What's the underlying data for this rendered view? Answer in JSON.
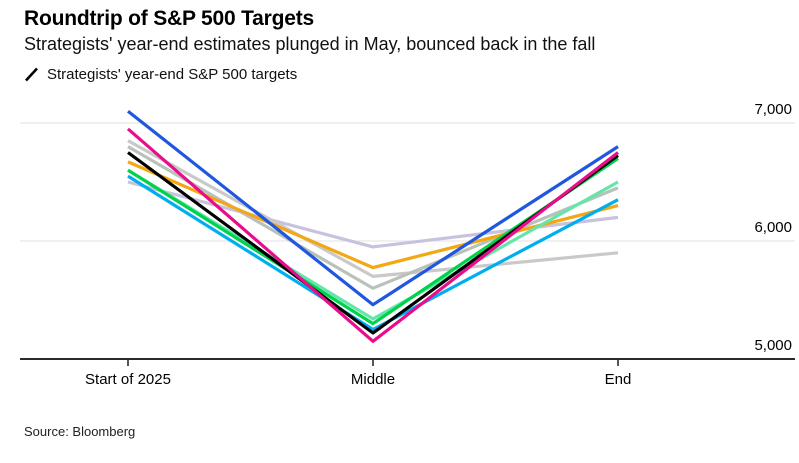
{
  "header": {
    "title": "Roundtrip of S&P 500 Targets",
    "subtitle": "Strategists' year-end estimates plunged in May, bounced back in the fall",
    "legend_label": "Strategists' year-end S&P 500 targets"
  },
  "footer": {
    "source": "Source: Bloomberg"
  },
  "chart_data": {
    "type": "line",
    "title": "Roundtrip of S&P 500 Targets",
    "subtitle": "Strategists' year-end estimates plunged in May, bounced back in the fall",
    "legend": [
      "Strategists' year-end S&P 500 targets"
    ],
    "legend_position": "top-left",
    "categories": [
      "Start of 2025",
      "Middle",
      "End"
    ],
    "xlabel": "",
    "ylabel": "",
    "ylim": [
      5000,
      7150
    ],
    "yticks": [
      5000,
      6000,
      7000
    ],
    "ytick_labels": [
      "5,000",
      "6,000",
      "7,000"
    ],
    "grid": "horizontal",
    "colors": {
      "gridline": "#e6e6e6",
      "baseline": "#2b2b2b",
      "text": "#000000"
    },
    "series": [
      {
        "name": "lavender",
        "color": "#c8c2df",
        "values": [
          6500,
          5950,
          6200
        ]
      },
      {
        "name": "gray-light",
        "color": "#c9c9c9",
        "values": [
          6850,
          5700,
          5900
        ]
      },
      {
        "name": "gray-sage",
        "color": "#b9c2ba",
        "values": [
          6800,
          5600,
          6450
        ]
      },
      {
        "name": "orange",
        "color": "#f3a712",
        "values": [
          6670,
          5775,
          6300
        ]
      },
      {
        "name": "mint-green",
        "color": "#63e6a9",
        "values": [
          6600,
          5340,
          6500
        ]
      },
      {
        "name": "cyan",
        "color": "#00aeef",
        "values": [
          6550,
          5250,
          6350
        ]
      },
      {
        "name": "green",
        "color": "#00d24b",
        "values": [
          6600,
          5300,
          6700
        ]
      },
      {
        "name": "black",
        "color": "#000000",
        "values": [
          6750,
          5220,
          6725
        ]
      },
      {
        "name": "pink",
        "color": "#e90c8b",
        "values": [
          6950,
          5150,
          6750
        ]
      },
      {
        "name": "blue",
        "color": "#2057e0",
        "values": [
          7100,
          5460,
          6800
        ]
      }
    ]
  }
}
